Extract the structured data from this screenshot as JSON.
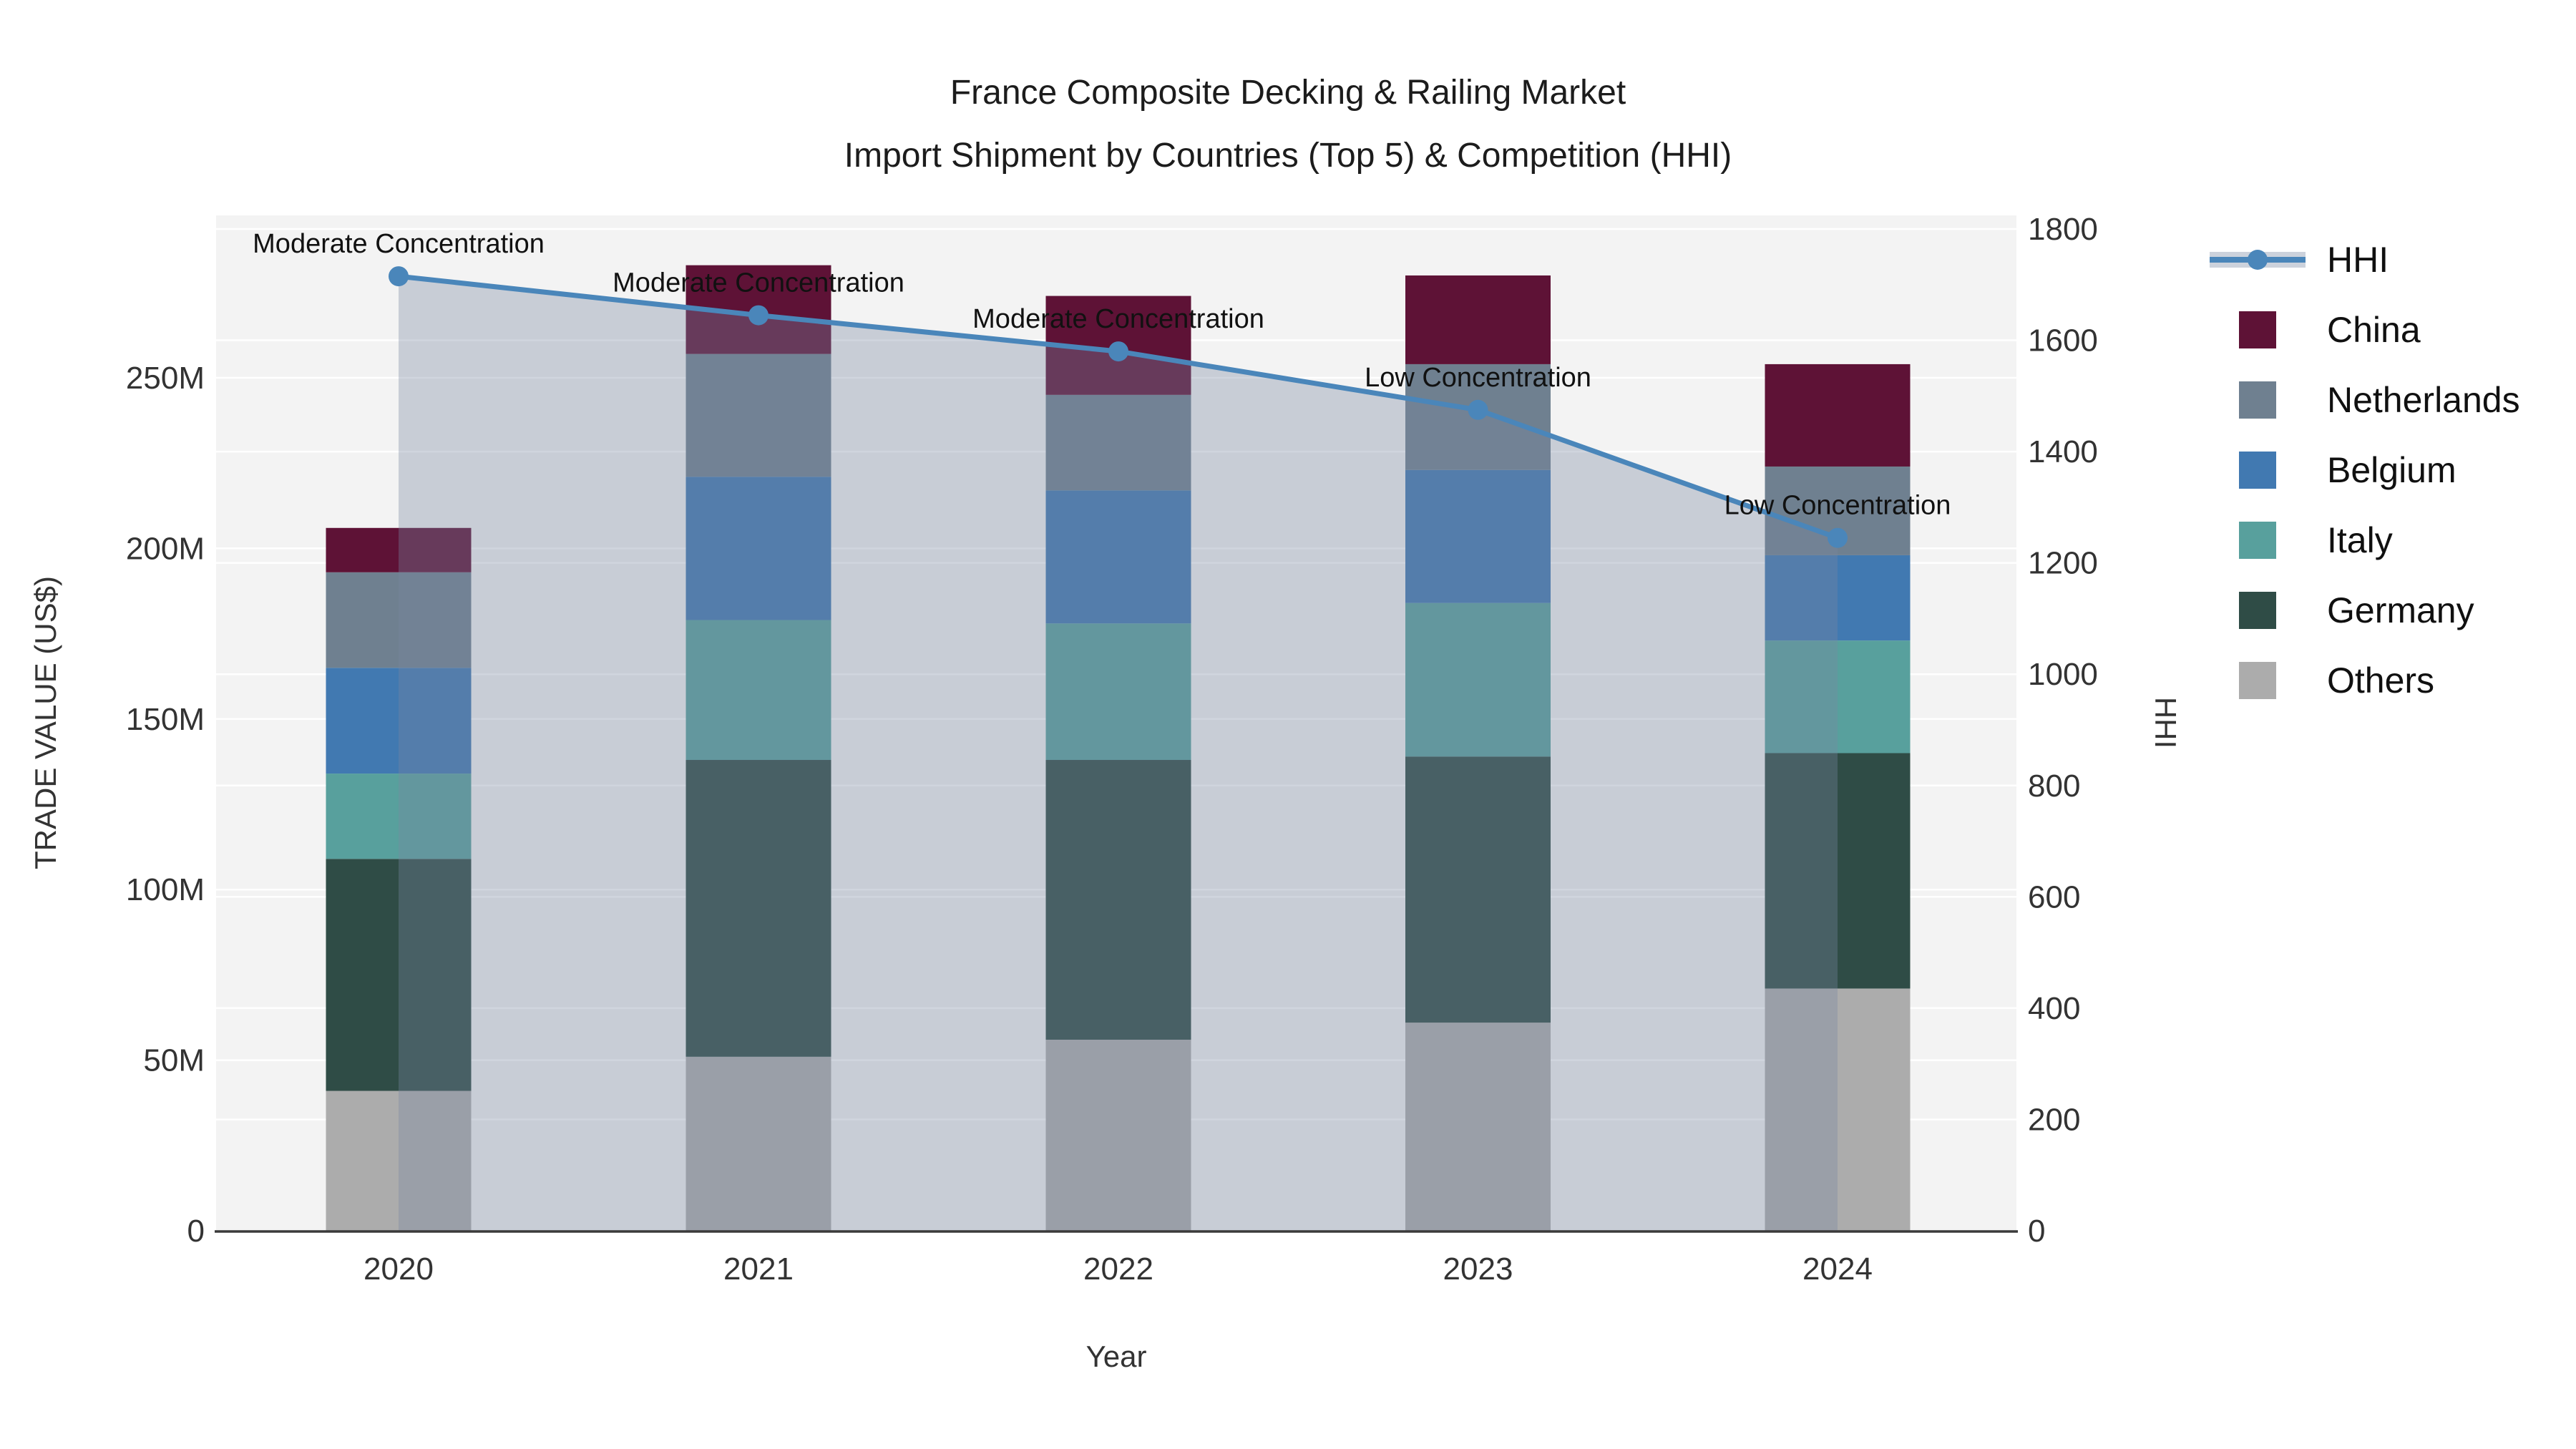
{
  "title": {
    "line1": "France Composite Decking & Railing Market",
    "line2": "Import Shipment by Countries (Top 5) & Competition (HHI)"
  },
  "axes": {
    "x": {
      "title": "Year",
      "ticks": [
        "2020",
        "2021",
        "2022",
        "2023",
        "2024"
      ]
    },
    "y_left": {
      "title": "TRADE VALUE (US$)",
      "ticks": [
        "0",
        "50M",
        "100M",
        "150M",
        "200M",
        "250M"
      ],
      "tick_values_M": [
        0,
        50,
        100,
        150,
        200,
        250
      ]
    },
    "y_right": {
      "title": "HHI",
      "ticks": [
        "0",
        "200",
        "400",
        "600",
        "800",
        "1000",
        "1200",
        "1400",
        "1600",
        "1800"
      ],
      "tick_values": [
        0,
        200,
        400,
        600,
        800,
        1000,
        1200,
        1400,
        1600,
        1800
      ]
    }
  },
  "legend": {
    "items": [
      {
        "label": "HHI",
        "type": "line",
        "color": "#4a86ba"
      },
      {
        "label": "China",
        "type": "swatch",
        "color": "#5e1236"
      },
      {
        "label": "Netherlands",
        "type": "swatch",
        "color": "#6f8090"
      },
      {
        "label": "Belgium",
        "type": "swatch",
        "color": "#4179b1"
      },
      {
        "label": "Italy",
        "type": "swatch",
        "color": "#58a09d"
      },
      {
        "label": "Germany",
        "type": "swatch",
        "color": "#2f4c46"
      },
      {
        "label": "Others",
        "type": "swatch",
        "color": "#acacac"
      }
    ]
  },
  "chart_data": {
    "type": "bar+line",
    "title": "France Composite Decking & Railing Market — Import Shipment by Countries (Top 5) & Competition (HHI)",
    "xlabel": "Year",
    "ylabel_left": "TRADE VALUE (US$)",
    "ylabel_right": "HHI",
    "categories": [
      2020,
      2021,
      2022,
      2023,
      2024
    ],
    "bar_unit": "US$ millions",
    "stack_order_bottom_to_top": [
      "Others",
      "Germany",
      "Italy",
      "Belgium",
      "Netherlands",
      "China"
    ],
    "series": [
      {
        "name": "Others",
        "color": "#acacac",
        "values": [
          41,
          51,
          56,
          61,
          71
        ]
      },
      {
        "name": "Germany",
        "color": "#2f4c46",
        "values": [
          68,
          87,
          82,
          78,
          69
        ]
      },
      {
        "name": "Italy",
        "color": "#58a09d",
        "values": [
          25,
          41,
          40,
          45,
          33
        ]
      },
      {
        "name": "Belgium",
        "color": "#4179b1",
        "values": [
          31,
          42,
          39,
          39,
          25
        ]
      },
      {
        "name": "Netherlands",
        "color": "#6f8090",
        "values": [
          28,
          36,
          28,
          31,
          26
        ]
      },
      {
        "name": "China",
        "color": "#5e1236",
        "values": [
          13,
          26,
          29,
          26,
          30
        ]
      }
    ],
    "line_series": {
      "name": "HHI",
      "color": "#4a86ba",
      "area_fill": "rgba(120,135,160,0.35)",
      "values": [
        1715,
        1645,
        1580,
        1475,
        1245
      ]
    },
    "annotations": [
      "Moderate Concentration",
      "Moderate Concentration",
      "Moderate Concentration",
      "Low Concentration",
      "Low Concentration"
    ],
    "ylim_left_M": [
      0,
      297
    ],
    "ylim_right": [
      0,
      1824
    ],
    "grid": true,
    "legend_position": "right"
  },
  "colors": {
    "page_bg": "#ffffff",
    "plot_bg": "#f3f3f3",
    "gridline": "#ffffff",
    "axis_line": "#3a3a3a",
    "text": "#1c1c1c",
    "tick_text": "#333333"
  }
}
